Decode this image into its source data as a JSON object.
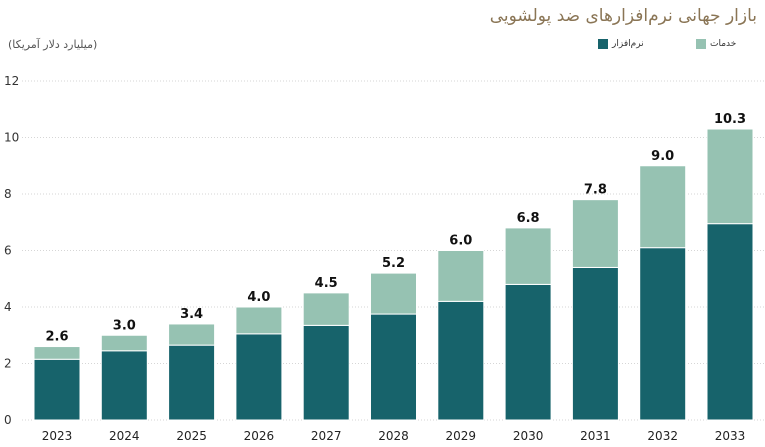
{
  "chart_data": {
    "type": "bar",
    "stacked": true,
    "title": "بازار جهانی نرم‌افزارهای ضد پولشویی",
    "subtitle": "(میلیارد دلار آمریکا)",
    "categories": [
      "2023",
      "2024",
      "2025",
      "2026",
      "2027",
      "2028",
      "2029",
      "2030",
      "2031",
      "2032",
      "2033"
    ],
    "series": [
      {
        "name": "نرم‌افزار",
        "color": "#17636b",
        "values": [
          2.15,
          2.45,
          2.65,
          3.05,
          3.35,
          3.75,
          4.2,
          4.8,
          5.4,
          6.1,
          6.95
        ]
      },
      {
        "name": "خدمات",
        "color": "#96c2b2",
        "values": [
          0.45,
          0.55,
          0.75,
          0.95,
          1.15,
          1.45,
          1.8,
          2.0,
          2.4,
          2.9,
          3.35
        ]
      }
    ],
    "totals": [
      "2.6",
      "3.0",
      "3.4",
      "4.0",
      "4.5",
      "5.2",
      "6.0",
      "6.8",
      "7.8",
      "9.0",
      "10.3"
    ],
    "yticks": [
      "0",
      "2",
      "4",
      "6",
      "8",
      "10",
      "12"
    ],
    "ylim": [
      0,
      12
    ],
    "grid": true,
    "legend_position": "top-right"
  }
}
